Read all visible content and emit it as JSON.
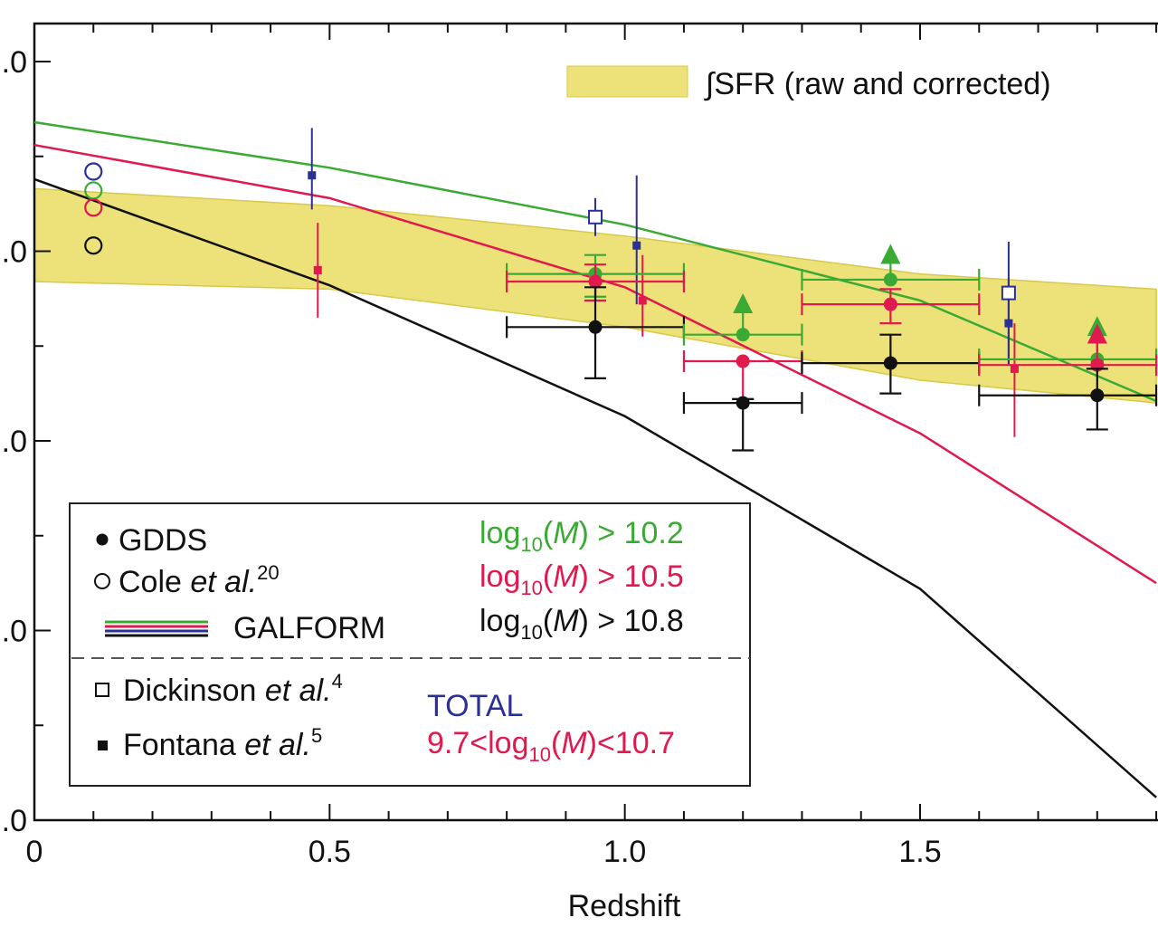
{
  "chart_data": {
    "type": "scatter",
    "xlabel": "Redshift",
    "xlim": [
      0,
      1.9
    ],
    "ylim": [
      0,
      4.2
    ],
    "x_ticks": [
      {
        "value": 0,
        "label": "0"
      },
      {
        "value": 0.5,
        "label": "0.5"
      },
      {
        "value": 1.0,
        "label": "1.0"
      },
      {
        "value": 1.5,
        "label": "1.5"
      }
    ],
    "y_ticks": [
      {
        "value": 0,
        "label": ".0"
      },
      {
        "value": 1,
        "label": ".0"
      },
      {
        "value": 2,
        "label": ".0"
      },
      {
        "value": 3,
        "label": ".0"
      },
      {
        "value": 4,
        "label": ".0"
      }
    ],
    "colors": {
      "green": "#3aaa35",
      "red": "#e0194f",
      "black": "#111111",
      "blue": "#2b2f96",
      "band": "#ede17a",
      "band_edge": "#d8c94a"
    },
    "sfr_band": {
      "label": "∫SFR (raw and corrected)",
      "x": [
        0,
        0.5,
        1.0,
        1.5,
        1.9
      ],
      "upper": [
        3.33,
        3.24,
        3.08,
        2.88,
        2.8
      ],
      "lower": [
        2.84,
        2.8,
        2.6,
        2.32,
        2.2
      ]
    },
    "galform": [
      {
        "color": "green",
        "x": [
          0,
          0.5,
          1.0,
          1.5,
          1.9
        ],
        "y": [
          3.68,
          3.44,
          3.14,
          2.74,
          2.21
        ]
      },
      {
        "color": "red",
        "x": [
          0,
          0.5,
          1.0,
          1.5,
          1.9
        ],
        "y": [
          3.56,
          3.28,
          2.81,
          2.04,
          1.25
        ]
      },
      {
        "color": "black",
        "x": [
          0,
          0.5,
          1.0,
          1.5,
          1.9
        ],
        "y": [
          3.38,
          2.82,
          2.13,
          1.22,
          0.12
        ]
      }
    ],
    "cole": [
      {
        "color": "blue",
        "x": 0.1,
        "y": 3.42
      },
      {
        "color": "green",
        "x": 0.1,
        "y": 3.32
      },
      {
        "color": "red",
        "x": 0.1,
        "y": 3.23
      },
      {
        "color": "black",
        "x": 0.1,
        "y": 3.03
      }
    ],
    "gdds": [
      {
        "color": "green",
        "x": 0.95,
        "y": 2.88,
        "xerr": [
          0.8,
          1.1
        ],
        "yerr": [
          2.76,
          2.98
        ],
        "lower_limit": false
      },
      {
        "color": "red",
        "x": 0.95,
        "y": 2.84,
        "xerr": [
          0.8,
          1.1
        ],
        "yerr": [
          2.74,
          2.93
        ],
        "lower_limit": false
      },
      {
        "color": "black",
        "x": 0.95,
        "y": 2.6,
        "xerr": [
          0.8,
          1.1
        ],
        "yerr": [
          2.33,
          2.81
        ],
        "lower_limit": false
      },
      {
        "color": "green",
        "x": 1.2,
        "y": 2.56,
        "xerr": [
          1.1,
          1.3
        ],
        "yerr": [
          2.56,
          2.74
        ],
        "lower_limit": true
      },
      {
        "color": "red",
        "x": 1.2,
        "y": 2.42,
        "xerr": [
          1.1,
          1.3
        ],
        "yerr": [
          2.22,
          2.42
        ],
        "lower_limit": false
      },
      {
        "color": "black",
        "x": 1.2,
        "y": 2.2,
        "xerr": [
          1.1,
          1.3
        ],
        "yerr": [
          1.95,
          2.22
        ],
        "lower_limit": false
      },
      {
        "color": "green",
        "x": 1.45,
        "y": 2.85,
        "xerr": [
          1.3,
          1.6
        ],
        "yerr": [
          2.85,
          3.0
        ],
        "lower_limit": true
      },
      {
        "color": "red",
        "x": 1.45,
        "y": 2.72,
        "xerr": [
          1.3,
          1.6
        ],
        "yerr": [
          2.62,
          2.8
        ],
        "lower_limit": false
      },
      {
        "color": "black",
        "x": 1.45,
        "y": 2.41,
        "xerr": [
          1.3,
          1.6
        ],
        "yerr": [
          2.25,
          2.56
        ],
        "lower_limit": false
      },
      {
        "color": "green",
        "x": 1.8,
        "y": 2.43,
        "xerr": [
          1.6,
          1.9
        ],
        "yerr": [
          2.43,
          2.62
        ],
        "lower_limit": true
      },
      {
        "color": "red",
        "x": 1.8,
        "y": 2.4,
        "xerr": [
          1.6,
          1.9
        ],
        "yerr": [
          2.4,
          2.58
        ],
        "lower_limit": true
      },
      {
        "color": "black",
        "x": 1.8,
        "y": 2.24,
        "xerr": [
          1.6,
          1.9
        ],
        "yerr": [
          2.06,
          2.38
        ],
        "lower_limit": false
      }
    ],
    "dickinson": [
      {
        "color": "blue",
        "x": 0.95,
        "y": 3.18,
        "yerr": [
          3.08,
          3.28
        ]
      },
      {
        "color": "blue",
        "x": 1.65,
        "y": 2.78,
        "yerr": [
          2.4,
          3.05
        ]
      }
    ],
    "fontana": [
      {
        "color": "blue",
        "x": 0.47,
        "y": 3.4,
        "yerr": [
          3.22,
          3.65
        ]
      },
      {
        "color": "red",
        "x": 0.48,
        "y": 2.9,
        "yerr": [
          2.65,
          3.15
        ]
      },
      {
        "color": "blue",
        "x": 1.02,
        "y": 3.03,
        "yerr": [
          2.72,
          3.4
        ]
      },
      {
        "color": "red",
        "x": 1.03,
        "y": 2.74,
        "yerr": [
          2.55,
          2.98
        ]
      },
      {
        "color": "blue",
        "x": 1.65,
        "y": 2.62,
        "yerr": [
          2.4,
          2.86
        ]
      },
      {
        "color": "red",
        "x": 1.66,
        "y": 2.38,
        "yerr": [
          2.02,
          2.62
        ]
      }
    ],
    "legend": {
      "gdds": "GDDS",
      "cole_name": "Cole ",
      "cole_etal": "et al.",
      "cole_ref": "20",
      "galform": "GALFORM",
      "dickinson_name": "Dickinson ",
      "dickinson_etal": "et al.",
      "dickinson_ref": "4",
      "fontana_name": "Fontana ",
      "fontana_etal": "et al.",
      "fontana_ref": "5",
      "mass_cuts": [
        {
          "color": "green",
          "log": "log",
          "sub": "10",
          "open": "(",
          "M": "M",
          "close": ") > 10.2"
        },
        {
          "color": "red",
          "log": "log",
          "sub": "10",
          "open": "(",
          "M": "M",
          "close": ") > 10.5"
        },
        {
          "color": "black",
          "log": "log",
          "sub": "10",
          "open": "(",
          "M": "M",
          "close": ") > 10.8"
        }
      ],
      "total": "TOTAL",
      "range": {
        "color": "red",
        "pre": "9.7<log",
        "sub": "10",
        "open": "(",
        "M": "M",
        "close": ")<10.7"
      }
    }
  }
}
